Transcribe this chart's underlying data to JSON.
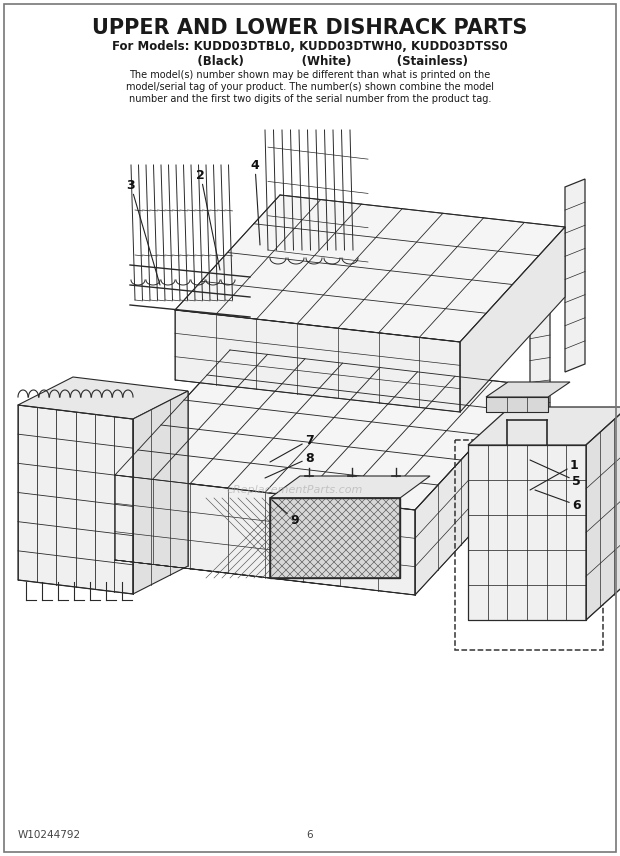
{
  "title": "UPPER AND LOWER DISHRACK PARTS",
  "subtitle": "For Models: KUDD03DTBL0, KUDD03DTWH0, KUDD03DTSS0",
  "col_labels": "           (Black)              (White)           (Stainless)",
  "description_line1": "The model(s) number shown may be different than what is printed on the",
  "description_line2": "model/serial tag of your product. The number(s) shown combine the model",
  "description_line3": "number and the first two digits of the serial number from the product tag.",
  "footer_left": "W10244792",
  "footer_center": "6",
  "bg_color": "#ffffff",
  "text_color": "#1a1a1a",
  "watermark": "eReplacementParts.com",
  "line_color": "#2a2a2a"
}
